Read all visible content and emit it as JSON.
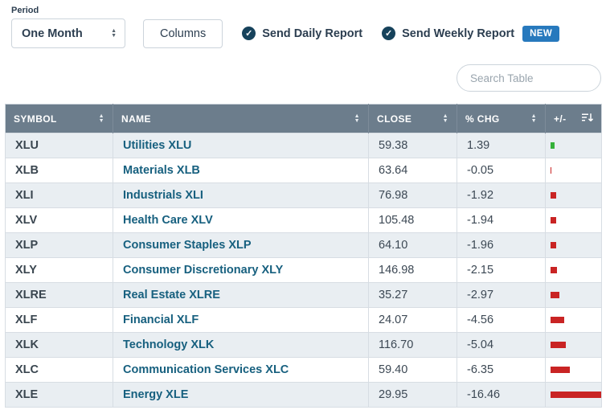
{
  "controls": {
    "period": {
      "label": "Period",
      "value": "One Month"
    },
    "columns_button": "Columns",
    "daily_report": "Send Daily Report",
    "weekly_report": "Send Weekly Report",
    "new_badge": "NEW",
    "search_placeholder": "Search Table"
  },
  "table": {
    "columns": [
      "SYMBOL",
      "NAME",
      "CLOSE",
      "% CHG",
      "+/-"
    ],
    "rows": [
      {
        "symbol": "XLU",
        "name": "Utilities XLU",
        "close": "59.38",
        "pct_chg": "1.39"
      },
      {
        "symbol": "XLB",
        "name": "Materials XLB",
        "close": "63.64",
        "pct_chg": "-0.05"
      },
      {
        "symbol": "XLI",
        "name": "Industrials XLI",
        "close": "76.98",
        "pct_chg": "-1.92"
      },
      {
        "symbol": "XLV",
        "name": "Health Care XLV",
        "close": "105.48",
        "pct_chg": "-1.94"
      },
      {
        "symbol": "XLP",
        "name": "Consumer Staples XLP",
        "close": "64.10",
        "pct_chg": "-1.96"
      },
      {
        "symbol": "XLY",
        "name": "Consumer Discretionary XLY",
        "close": "146.98",
        "pct_chg": "-2.15"
      },
      {
        "symbol": "XLRE",
        "name": "Real Estate XLRE",
        "close": "35.27",
        "pct_chg": "-2.97"
      },
      {
        "symbol": "XLF",
        "name": "Financial XLF",
        "close": "24.07",
        "pct_chg": "-4.56"
      },
      {
        "symbol": "XLK",
        "name": "Technology XLK",
        "close": "116.70",
        "pct_chg": "-5.04"
      },
      {
        "symbol": "XLC",
        "name": "Communication Services XLC",
        "close": "59.40",
        "pct_chg": "-6.35"
      },
      {
        "symbol": "XLE",
        "name": "Energy XLE",
        "close": "29.95",
        "pct_chg": "-16.46"
      }
    ]
  },
  "colors": {
    "positive_bar": "#35b13a",
    "negative_bar": "#c92424",
    "header_bg": "#6c7d8c",
    "badge_bg": "#2779bd",
    "link": "#17607f",
    "check_circle": "#16425b"
  }
}
